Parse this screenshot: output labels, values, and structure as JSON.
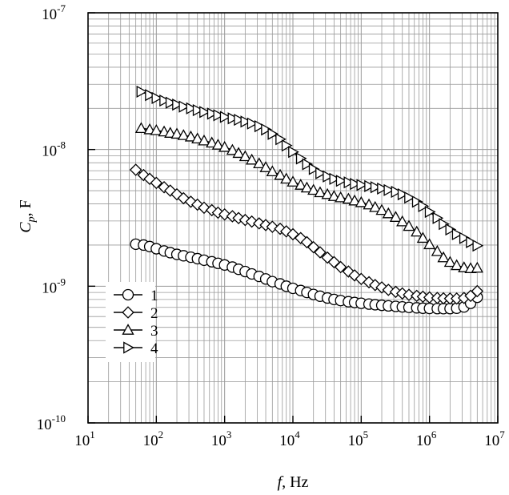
{
  "chart_data": {
    "type": "line",
    "xscale": "log",
    "yscale": "log",
    "xlim": [
      10,
      10000000
    ],
    "ylim": [
      1e-10,
      1e-07
    ],
    "grid": true,
    "legend_position": "lower-left",
    "x_ticks": [
      {
        "value": 10,
        "base": "10",
        "exp": "1"
      },
      {
        "value": 100,
        "base": "10",
        "exp": "2"
      },
      {
        "value": 1000,
        "base": "10",
        "exp": "3"
      },
      {
        "value": 10000,
        "base": "10",
        "exp": "4"
      },
      {
        "value": 100000,
        "base": "10",
        "exp": "5"
      },
      {
        "value": 1000000,
        "base": "10",
        "exp": "6"
      },
      {
        "value": 10000000,
        "base": "10",
        "exp": "7"
      }
    ],
    "y_ticks": [
      {
        "value": 1e-10,
        "base": "10",
        "exp": "-10"
      },
      {
        "value": 1e-09,
        "base": "10",
        "exp": "-9"
      },
      {
        "value": 1e-08,
        "base": "10",
        "exp": "-8"
      },
      {
        "value": 1e-07,
        "base": "10",
        "exp": "-7"
      }
    ],
    "xlabel": {
      "symbol": "f",
      "unit": ", Hz"
    },
    "ylabel": {
      "symbol": "C",
      "subscript": "p",
      "unit": ", F"
    },
    "series": [
      {
        "name": "1",
        "marker": "circle",
        "x": [
          50,
          65,
          80,
          100,
          130,
          160,
          200,
          250,
          320,
          400,
          500,
          650,
          800,
          1000,
          1300,
          1600,
          2000,
          2500,
          3200,
          4000,
          5000,
          6500,
          8000,
          10000,
          13000,
          16000,
          20000,
          25000,
          32000,
          40000,
          50000,
          65000,
          80000,
          100000,
          130000,
          160000,
          200000,
          250000,
          320000,
          400000,
          500000,
          650000,
          800000,
          1000000,
          1300000,
          1600000,
          2000000,
          2500000,
          3200000,
          4000000,
          5000000
        ],
        "y": [
          2.03e-09,
          2e-09,
          1.95e-09,
          1.88e-09,
          1.81e-09,
          1.76e-09,
          1.71e-09,
          1.67e-09,
          1.63e-09,
          1.59e-09,
          1.55e-09,
          1.51e-09,
          1.47e-09,
          1.43e-09,
          1.38e-09,
          1.33e-09,
          1.28e-09,
          1.23e-09,
          1.18e-09,
          1.13e-09,
          1.08e-09,
          1.04e-09,
          1e-09,
          9.65e-10,
          9.3e-10,
          9e-10,
          8.7e-10,
          8.45e-10,
          8.2e-10,
          8e-10,
          7.85e-10,
          7.7e-10,
          7.6e-10,
          7.5e-10,
          7.4e-10,
          7.32e-10,
          7.25e-10,
          7.18e-10,
          7.12e-10,
          7.06e-10,
          7e-10,
          6.95e-10,
          6.9e-10,
          6.88e-10,
          6.86e-10,
          6.85e-10,
          6.86e-10,
          6.9e-10,
          7.05e-10,
          7.5e-10,
          8.3e-10
        ]
      },
      {
        "name": "2",
        "marker": "diamond",
        "x": [
          50,
          65,
          80,
          100,
          130,
          160,
          200,
          250,
          320,
          400,
          500,
          650,
          800,
          1000,
          1300,
          1600,
          2000,
          2500,
          3200,
          4000,
          5000,
          6500,
          8000,
          10000,
          13000,
          16000,
          20000,
          25000,
          32000,
          40000,
          50000,
          65000,
          80000,
          100000,
          130000,
          160000,
          200000,
          250000,
          320000,
          400000,
          500000,
          650000,
          800000,
          1000000,
          1300000,
          1600000,
          2000000,
          2500000,
          3200000,
          4000000,
          5000000
        ],
        "y": [
          7.1e-09,
          6.5e-09,
          6.1e-09,
          5.7e-09,
          5.3e-09,
          5e-09,
          4.7e-09,
          4.4e-09,
          4.15e-09,
          3.95e-09,
          3.75e-09,
          3.6e-09,
          3.45e-09,
          3.35e-09,
          3.25e-09,
          3.15e-09,
          3.05e-09,
          2.97e-09,
          2.88e-09,
          2.8e-09,
          2.72e-09,
          2.63e-09,
          2.52e-09,
          2.4e-09,
          2.25e-09,
          2.1e-09,
          1.93e-09,
          1.77e-09,
          1.62e-09,
          1.5e-09,
          1.38e-09,
          1.28e-09,
          1.2e-09,
          1.13e-09,
          1.07e-09,
          1.02e-09,
          9.8e-10,
          9.4e-10,
          9.1e-10,
          8.85e-10,
          8.65e-10,
          8.5e-10,
          8.38e-10,
          8.28e-10,
          8.2e-10,
          8.15e-10,
          8.12e-10,
          8.12e-10,
          8.2e-10,
          8.5e-10,
          9.2e-10
        ]
      },
      {
        "name": "3",
        "marker": "triangle-up",
        "x": [
          60,
          80,
          100,
          130,
          160,
          200,
          250,
          320,
          400,
          500,
          650,
          800,
          1000,
          1300,
          1600,
          2000,
          2500,
          3200,
          4000,
          5000,
          6500,
          8000,
          10000,
          13000,
          16000,
          20000,
          25000,
          32000,
          40000,
          50000,
          65000,
          80000,
          100000,
          130000,
          160000,
          200000,
          250000,
          320000,
          400000,
          500000,
          650000,
          800000,
          1000000,
          1300000,
          1600000,
          2000000,
          2500000,
          3200000,
          4000000,
          5000000
        ],
        "y": [
          1.43e-08,
          1.4e-08,
          1.38e-08,
          1.35e-08,
          1.32e-08,
          1.3e-08,
          1.27e-08,
          1.24e-08,
          1.2e-08,
          1.16e-08,
          1.12e-08,
          1.08e-08,
          1.04e-08,
          9.9e-09,
          9.4e-09,
          8.9e-09,
          8.4e-09,
          7.9e-09,
          7.4e-09,
          6.9e-09,
          6.5e-09,
          6.1e-09,
          5.8e-09,
          5.5e-09,
          5.25e-09,
          5.05e-09,
          4.85e-09,
          4.7e-09,
          4.55e-09,
          4.45e-09,
          4.35e-09,
          4.22e-09,
          4.1e-09,
          3.95e-09,
          3.78e-09,
          3.6e-09,
          3.4e-09,
          3.2e-09,
          2.97e-09,
          2.75e-09,
          2.5e-09,
          2.25e-09,
          2.02e-09,
          1.8e-09,
          1.62e-09,
          1.5e-09,
          1.42e-09,
          1.37e-09,
          1.35e-09,
          1.36e-09
        ]
      },
      {
        "name": "4",
        "marker": "triangle-right",
        "x": [
          60,
          80,
          100,
          130,
          160,
          200,
          250,
          320,
          400,
          500,
          650,
          800,
          1000,
          1300,
          1600,
          2000,
          2500,
          3200,
          4000,
          5000,
          6500,
          8000,
          10000,
          13000,
          16000,
          20000,
          25000,
          32000,
          40000,
          50000,
          65000,
          80000,
          100000,
          130000,
          160000,
          200000,
          250000,
          320000,
          400000,
          500000,
          650000,
          800000,
          1000000,
          1300000,
          1600000,
          2000000,
          2500000,
          3200000,
          4000000,
          5000000
        ],
        "y": [
          2.65e-08,
          2.5e-08,
          2.38e-08,
          2.28e-08,
          2.2e-08,
          2.13e-08,
          2.06e-08,
          2e-08,
          1.94e-08,
          1.88e-08,
          1.83e-08,
          1.78e-08,
          1.73e-08,
          1.69e-08,
          1.65e-08,
          1.6e-08,
          1.55e-08,
          1.48e-08,
          1.4e-08,
          1.3e-08,
          1.19e-08,
          1.07e-08,
          9.6e-09,
          8.6e-09,
          7.8e-09,
          7.2e-09,
          6.7e-09,
          6.35e-09,
          6.1e-09,
          5.9e-09,
          5.75e-09,
          5.6e-09,
          5.5e-09,
          5.4e-09,
          5.3e-09,
          5.18e-09,
          5.05e-09,
          4.9e-09,
          4.7e-09,
          4.45e-09,
          4.15e-09,
          3.85e-09,
          3.5e-09,
          3.15e-09,
          2.85e-09,
          2.6e-09,
          2.4e-09,
          2.25e-09,
          2.1e-09,
          1.98e-09
        ]
      }
    ]
  }
}
